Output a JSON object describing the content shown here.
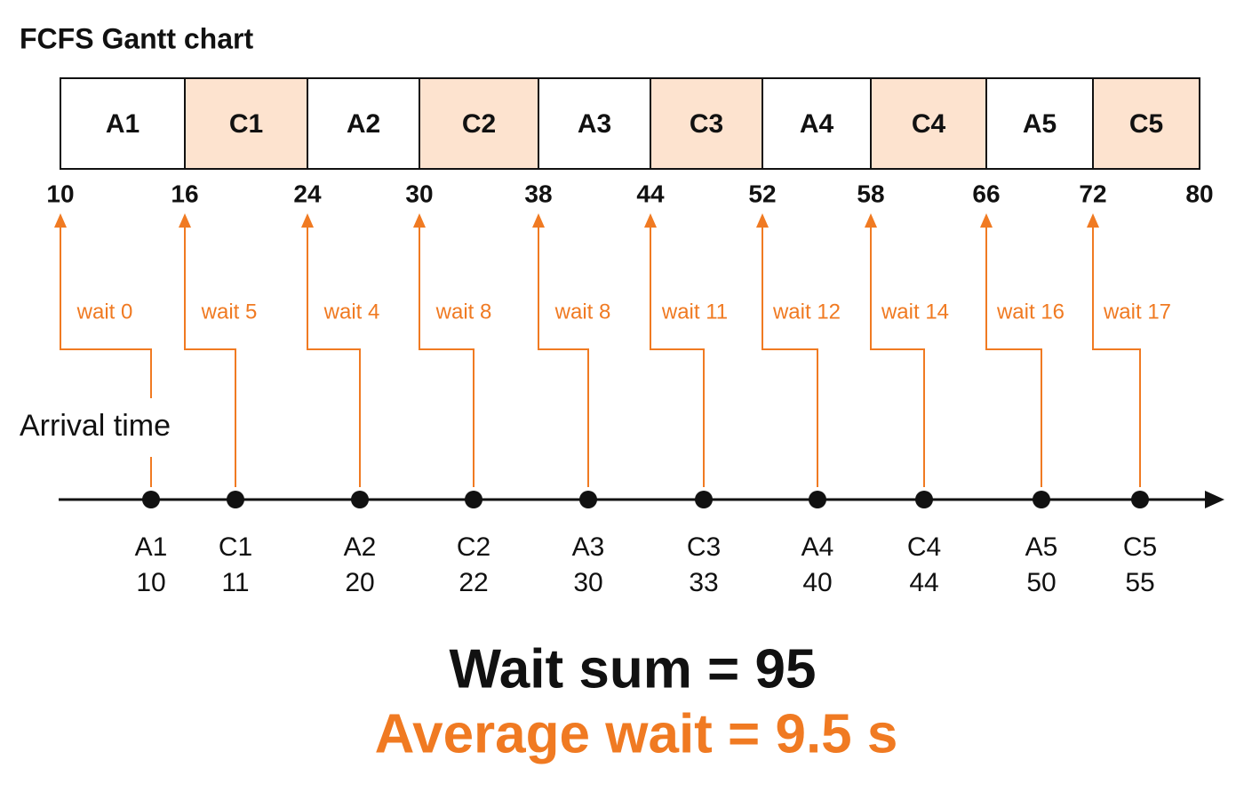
{
  "title": "FCFS Gantt chart",
  "gantt": {
    "blocks": [
      {
        "label": "A1",
        "color": "#ffffff"
      },
      {
        "label": "C1",
        "color": "#fde3cf"
      },
      {
        "label": "A2",
        "color": "#ffffff"
      },
      {
        "label": "C2",
        "color": "#fde3cf"
      },
      {
        "label": "A3",
        "color": "#ffffff"
      },
      {
        "label": "C3",
        "color": "#fde3cf"
      },
      {
        "label": "A4",
        "color": "#ffffff"
      },
      {
        "label": "C4",
        "color": "#fde3cf"
      },
      {
        "label": "A5",
        "color": "#ffffff"
      },
      {
        "label": "C5",
        "color": "#fde3cf"
      }
    ],
    "ticks": [
      10,
      16,
      24,
      30,
      38,
      44,
      52,
      58,
      66,
      72,
      80
    ]
  },
  "waits": [
    "wait 0",
    "wait 5",
    "wait 4",
    "wait 8",
    "wait 8",
    "wait 11",
    "wait 12",
    "wait 14",
    "wait 16",
    "wait 17"
  ],
  "arrival_label": "Arrival time",
  "arrivals": [
    {
      "name": "A1",
      "time": 10
    },
    {
      "name": "C1",
      "time": 11
    },
    {
      "name": "A2",
      "time": 20
    },
    {
      "name": "C2",
      "time": 22
    },
    {
      "name": "A3",
      "time": 30
    },
    {
      "name": "C3",
      "time": 33
    },
    {
      "name": "A4",
      "time": 40
    },
    {
      "name": "C4",
      "time": 44
    },
    {
      "name": "A5",
      "time": 50
    },
    {
      "name": "C5",
      "time": 55
    }
  ],
  "summary": {
    "wait_sum": "Wait sum = 95",
    "average": "Average wait = 9.5 s"
  }
}
